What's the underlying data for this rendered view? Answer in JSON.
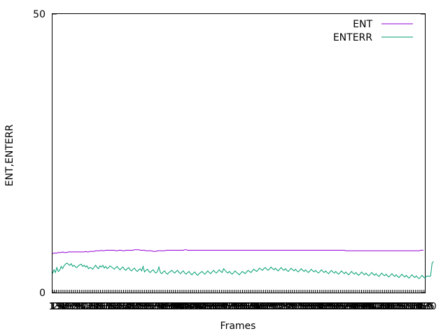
{
  "chart_data": {
    "type": "line",
    "xlabel": "Frames",
    "ylabel": "ENT,ENTERR",
    "ylim": [
      0,
      50
    ],
    "ytick_labels": [
      "0",
      "50"
    ],
    "x_count": 260,
    "x_tick_labels": [
      "1",
      "13",
      "19",
      "25",
      "31",
      "37",
      "43",
      "49",
      "55",
      "61",
      "67",
      "73",
      "79",
      "85",
      "91",
      "97",
      "103",
      "109",
      "115",
      "121",
      "127",
      "133",
      "139",
      "145",
      "151",
      "157",
      "163",
      "169",
      "175",
      "181",
      "187",
      "193",
      "199",
      "205",
      "211",
      "217",
      "223",
      "229",
      "235",
      "241",
      "247",
      "253",
      "259",
      "265",
      "271",
      "277",
      "283",
      "289",
      "295",
      "301",
      "307",
      "313",
      "319",
      "325",
      "331",
      "337",
      "343",
      "349",
      "355",
      "361",
      "367",
      "373",
      "379",
      "385",
      "391",
      "397",
      "403",
      "409",
      "415",
      "421",
      "427",
      "433",
      "439",
      "445",
      "451",
      "457",
      "463",
      "469",
      "475",
      "481",
      "487",
      "493",
      "499",
      "505",
      "511",
      "517",
      "523",
      "529",
      "535",
      "541",
      "547",
      "553",
      "559",
      "565",
      "571",
      "577",
      "583",
      "589",
      "595",
      "601",
      "607",
      "613",
      "619",
      "625",
      "631",
      "637",
      "643",
      "649",
      "655",
      "661",
      "667",
      "673",
      "679",
      "685",
      "691",
      "697",
      "703",
      "709",
      "715",
      "721",
      "727",
      "733",
      "739",
      "745",
      "751",
      "757",
      "763",
      "769",
      "775",
      "781",
      "787",
      "793",
      "799",
      "805",
      "811",
      "817",
      "823",
      "829",
      "835",
      "841",
      "847",
      "853",
      "859",
      "865",
      "871",
      "877",
      "883",
      "889",
      "895",
      "901",
      "907",
      "913",
      "919",
      "925",
      "931",
      "937",
      "943",
      "949",
      "955",
      "961",
      "967",
      "973",
      "979",
      "985",
      "991",
      "997",
      "1003",
      "1009",
      "1015",
      "1021",
      "1027",
      "1033",
      "1039",
      "1045",
      "1051",
      "1057",
      "1063",
      "1069",
      "1075",
      "1081",
      "1087",
      "1093",
      "1099",
      "1105",
      "1111",
      "1117",
      "1123",
      "1129",
      "1135",
      "1141",
      "1147",
      "1153",
      "1159",
      "1165",
      "1170"
    ],
    "legend_position": "top-right",
    "series": [
      {
        "name": "ENT",
        "color": "#9400d3",
        "values": [
          7.0,
          7.1,
          7.1,
          7.1,
          7.2,
          7.2,
          7.2,
          7.3,
          7.2,
          7.2,
          7.2,
          7.3,
          7.3,
          7.3,
          7.3,
          7.3,
          7.3,
          7.3,
          7.3,
          7.3,
          7.3,
          7.3,
          7.3,
          7.4,
          7.3,
          7.3,
          7.4,
          7.4,
          7.4,
          7.4,
          7.5,
          7.5,
          7.5,
          7.5,
          7.6,
          7.5,
          7.5,
          7.6,
          7.6,
          7.6,
          7.6,
          7.6,
          7.6,
          7.6,
          7.5,
          7.5,
          7.6,
          7.6,
          7.6,
          7.5,
          7.5,
          7.6,
          7.6,
          7.6,
          7.6,
          7.6,
          7.6,
          7.7,
          7.7,
          7.7,
          7.7,
          7.6,
          7.6,
          7.6,
          7.6,
          7.5,
          7.5,
          7.5,
          7.5,
          7.5,
          7.4,
          7.4,
          7.4,
          7.5,
          7.5,
          7.5,
          7.5,
          7.5,
          7.5,
          7.6,
          7.6,
          7.6,
          7.6,
          7.6,
          7.6,
          7.6,
          7.6,
          7.6,
          7.6,
          7.6,
          7.6,
          7.6,
          7.7,
          7.7,
          7.6,
          7.6,
          7.6,
          7.6,
          7.6,
          7.6,
          7.6,
          7.6,
          7.6,
          7.6,
          7.6,
          7.6,
          7.6,
          7.6,
          7.6,
          7.6,
          7.6,
          7.6,
          7.6,
          7.6,
          7.6,
          7.6,
          7.6,
          7.6,
          7.6,
          7.6,
          7.6,
          7.6,
          7.6,
          7.6,
          7.6,
          7.6,
          7.6,
          7.6,
          7.6,
          7.6,
          7.6,
          7.6,
          7.6,
          7.6,
          7.6,
          7.6,
          7.6,
          7.6,
          7.6,
          7.6,
          7.6,
          7.6,
          7.6,
          7.6,
          7.6,
          7.6,
          7.6,
          7.6,
          7.6,
          7.6,
          7.6,
          7.6,
          7.6,
          7.6,
          7.6,
          7.6,
          7.6,
          7.6,
          7.6,
          7.6,
          7.6,
          7.6,
          7.6,
          7.6,
          7.6,
          7.6,
          7.6,
          7.6,
          7.6,
          7.6,
          7.6,
          7.6,
          7.6,
          7.6,
          7.6,
          7.6,
          7.6,
          7.6,
          7.6,
          7.6,
          7.6,
          7.6,
          7.6,
          7.6,
          7.6,
          7.6,
          7.6,
          7.6,
          7.6,
          7.6,
          7.6,
          7.6,
          7.6,
          7.6,
          7.6,
          7.6,
          7.6,
          7.6,
          7.6,
          7.6,
          7.6,
          7.6,
          7.6,
          7.6,
          7.5,
          7.5,
          7.5,
          7.5,
          7.5,
          7.5,
          7.5,
          7.5,
          7.5,
          7.5,
          7.5,
          7.5,
          7.5,
          7.5,
          7.5,
          7.5,
          7.5,
          7.5,
          7.5,
          7.5,
          7.5,
          7.5,
          7.5,
          7.5,
          7.5,
          7.5,
          7.5,
          7.5,
          7.5,
          7.5,
          7.5,
          7.5,
          7.5,
          7.5,
          7.5,
          7.5,
          7.5,
          7.5,
          7.5,
          7.5,
          7.5,
          7.5,
          7.5,
          7.5,
          7.5,
          7.5,
          7.5,
          7.5,
          7.5,
          7.5,
          7.5,
          7.5,
          7.6,
          7.6,
          7.6
        ]
      },
      {
        "name": "ENTERR",
        "color": "#009e73",
        "values": [
          3.4,
          4.1,
          3.6,
          4.5,
          3.8,
          4.0,
          4.7,
          4.3,
          4.8,
          5.1,
          5.3,
          5.1,
          4.9,
          5.2,
          4.7,
          4.9,
          4.6,
          4.5,
          4.8,
          5.0,
          5.1,
          4.7,
          4.9,
          4.6,
          4.8,
          4.3,
          4.5,
          4.4,
          4.2,
          4.6,
          4.9,
          4.5,
          4.3,
          4.8,
          4.6,
          4.9,
          4.4,
          4.7,
          4.3,
          4.5,
          4.8,
          4.6,
          4.4,
          4.2,
          4.5,
          4.7,
          4.3,
          4.1,
          4.4,
          4.6,
          4.2,
          4.0,
          4.3,
          4.5,
          4.1,
          3.9,
          4.2,
          4.4,
          4.0,
          3.8,
          4.1,
          4.3,
          3.9,
          4.7,
          3.7,
          4.0,
          4.2,
          3.8,
          3.6,
          3.9,
          4.1,
          3.7,
          3.5,
          3.8,
          4.6,
          3.6,
          3.4,
          3.7,
          3.9,
          3.5,
          3.3,
          3.6,
          3.8,
          4.0,
          3.7,
          3.5,
          3.8,
          4.0,
          3.6,
          3.4,
          3.7,
          3.9,
          3.5,
          3.3,
          3.6,
          3.8,
          3.4,
          3.2,
          3.5,
          3.7,
          3.3,
          3.1,
          3.4,
          3.6,
          3.8,
          3.5,
          3.3,
          3.6,
          3.9,
          3.6,
          3.4,
          3.7,
          4.0,
          3.7,
          3.5,
          3.8,
          4.1,
          3.8,
          3.6,
          4.3,
          4.0,
          3.7,
          3.5,
          3.8,
          3.5,
          3.3,
          3.6,
          3.9,
          3.6,
          3.4,
          3.2,
          3.5,
          3.8,
          3.6,
          3.4,
          3.7,
          4.0,
          3.8,
          3.6,
          3.9,
          4.2,
          4.0,
          3.8,
          4.1,
          4.4,
          4.2,
          4.0,
          4.3,
          4.5,
          4.2,
          4.0,
          4.3,
          4.6,
          4.3,
          4.1,
          4.4,
          4.1,
          3.9,
          4.2,
          4.5,
          4.2,
          4.0,
          4.3,
          4.0,
          3.8,
          4.1,
          4.4,
          4.1,
          3.9,
          4.2,
          3.9,
          3.7,
          4.0,
          4.3,
          4.0,
          3.8,
          4.1,
          3.8,
          3.6,
          3.9,
          4.2,
          3.9,
          3.7,
          4.0,
          3.7,
          3.5,
          3.8,
          4.1,
          3.8,
          3.6,
          3.9,
          3.6,
          3.4,
          3.7,
          4.0,
          3.7,
          3.5,
          3.8,
          3.5,
          3.3,
          3.6,
          3.9,
          3.6,
          3.4,
          3.7,
          3.4,
          3.2,
          3.5,
          3.8,
          3.5,
          3.3,
          3.6,
          3.3,
          3.1,
          3.4,
          3.7,
          3.4,
          3.2,
          3.5,
          3.2,
          3.0,
          3.3,
          3.6,
          3.3,
          3.1,
          3.4,
          3.1,
          2.9,
          3.2,
          3.5,
          3.2,
          3.0,
          3.3,
          3.0,
          2.8,
          3.1,
          3.4,
          3.1,
          2.9,
          3.2,
          2.9,
          2.7,
          3.0,
          3.3,
          3.0,
          2.8,
          3.1,
          2.8,
          2.6,
          2.9,
          3.2,
          2.9,
          2.7,
          3.0,
          2.7,
          2.5,
          2.8,
          3.1,
          2.8,
          2.6,
          2.9,
          3.0,
          2.9,
          3.0,
          5.3,
          5.6
        ]
      }
    ],
    "grid": false
  }
}
